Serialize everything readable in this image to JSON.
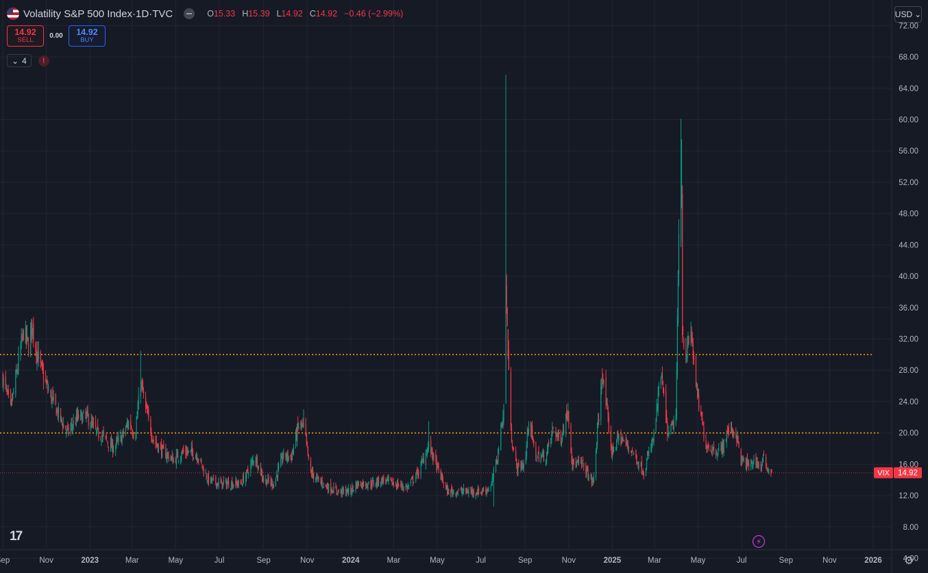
{
  "header": {
    "title": "Volatility S&P 500 Index",
    "interval": "1D",
    "exchange": "TVC",
    "sep": " · ",
    "open_label": "O",
    "open": "15.33",
    "high_label": "H",
    "high": "15.39",
    "low_label": "L",
    "low": "14.92",
    "close_label": "C",
    "close": "14.92",
    "change": "−0.46 (−2.99%)"
  },
  "trade": {
    "sell_price": "14.92",
    "sell_label": "SELL",
    "spread": "0.00",
    "buy_price": "14.92",
    "buy_label": "BUY"
  },
  "indicators": {
    "count": "4",
    "chevron_icon": "chevron-down-icon",
    "warning_icon": "!"
  },
  "currency": {
    "label": "USD",
    "icon": "chevron-down-icon"
  },
  "price_label": {
    "symbol": "VIX",
    "value": "14.92"
  },
  "logo_text": "17",
  "colors": {
    "background": "#161a25",
    "grid": "#232632",
    "up": "#089981",
    "down": "#f23645",
    "level_line": "#ff9800",
    "last_price": "#f23645"
  },
  "chart_data": {
    "type": "candlestick",
    "symbol": "VIX",
    "ylim": [
      4,
      74
    ],
    "yticks": [
      "4.00",
      "8.00",
      "12.00",
      "16.00",
      "20.00",
      "24.00",
      "28.00",
      "32.00",
      "36.00",
      "40.00",
      "44.00",
      "48.00",
      "52.00",
      "56.00",
      "60.00",
      "64.00",
      "68.00",
      "72.00"
    ],
    "xticks": [
      {
        "label": "Sep",
        "date": "2022-09-01"
      },
      {
        "label": "Nov",
        "date": "2022-11-01"
      },
      {
        "label": "2023",
        "date": "2023-01-01"
      },
      {
        "label": "Mar",
        "date": "2023-03-01"
      },
      {
        "label": "May",
        "date": "2023-05-01"
      },
      {
        "label": "Jul",
        "date": "2023-07-01"
      },
      {
        "label": "Sep",
        "date": "2023-09-01"
      },
      {
        "label": "Nov",
        "date": "2023-11-01"
      },
      {
        "label": "2024",
        "date": "2024-01-01"
      },
      {
        "label": "Mar",
        "date": "2024-03-01"
      },
      {
        "label": "May",
        "date": "2024-05-01"
      },
      {
        "label": "Jul",
        "date": "2024-07-01"
      },
      {
        "label": "Sep",
        "date": "2024-09-01"
      },
      {
        "label": "Nov",
        "date": "2024-11-01"
      },
      {
        "label": "2025",
        "date": "2025-01-01"
      },
      {
        "label": "Mar",
        "date": "2025-03-01"
      },
      {
        "label": "May",
        "date": "2025-05-01"
      },
      {
        "label": "Jul",
        "date": "2025-07-01"
      },
      {
        "label": "Sep",
        "date": "2025-09-01"
      },
      {
        "label": "Nov",
        "date": "2025-11-01"
      },
      {
        "label": "2026",
        "date": "2026-01-01"
      }
    ],
    "horizontal_levels": [
      30,
      20
    ],
    "last_price": 14.92,
    "close_path": [
      [
        "2022-09-01",
        27
      ],
      [
        "2022-09-12",
        23
      ],
      [
        "2022-09-23",
        29
      ],
      [
        "2022-09-30",
        33
      ],
      [
        "2022-10-07",
        31
      ],
      [
        "2022-10-12",
        33.5
      ],
      [
        "2022-10-17",
        31
      ],
      [
        "2022-10-25",
        28
      ],
      [
        "2022-11-01",
        26
      ],
      [
        "2022-11-10",
        24
      ],
      [
        "2022-11-22",
        21.5
      ],
      [
        "2022-12-01",
        20
      ],
      [
        "2022-12-15",
        22
      ],
      [
        "2022-12-28",
        22
      ],
      [
        "2023-01-10",
        20
      ],
      [
        "2023-01-20",
        19.5
      ],
      [
        "2023-02-02",
        18
      ],
      [
        "2023-02-15",
        19.5
      ],
      [
        "2023-02-25",
        21.5
      ],
      [
        "2023-03-05",
        19.5
      ],
      [
        "2023-03-13",
        26.5
      ],
      [
        "2023-03-20",
        23
      ],
      [
        "2023-03-31",
        19
      ],
      [
        "2023-04-14",
        17.5
      ],
      [
        "2023-04-28",
        16.5
      ],
      [
        "2023-05-10",
        17.5
      ],
      [
        "2023-05-24",
        17.5
      ],
      [
        "2023-06-01",
        17
      ],
      [
        "2023-06-15",
        14
      ],
      [
        "2023-07-01",
        13.5
      ],
      [
        "2023-07-15",
        13.5
      ],
      [
        "2023-07-31",
        13.5
      ],
      [
        "2023-08-10",
        15
      ],
      [
        "2023-08-20",
        17
      ],
      [
        "2023-09-01",
        14
      ],
      [
        "2023-09-15",
        13.5
      ],
      [
        "2023-09-28",
        17
      ],
      [
        "2023-10-10",
        17
      ],
      [
        "2023-10-20",
        21
      ],
      [
        "2023-10-28",
        20.5
      ],
      [
        "2023-11-05",
        15
      ],
      [
        "2023-11-15",
        14
      ],
      [
        "2023-12-01",
        13
      ],
      [
        "2023-12-15",
        12.5
      ],
      [
        "2023-12-31",
        12.5
      ],
      [
        "2024-01-10",
        13.5
      ],
      [
        "2024-01-30",
        13.5
      ],
      [
        "2024-02-15",
        14
      ],
      [
        "2024-03-01",
        13.5
      ],
      [
        "2024-03-20",
        13
      ],
      [
        "2024-04-05",
        15
      ],
      [
        "2024-04-19",
        18.5
      ],
      [
        "2024-05-01",
        15.5
      ],
      [
        "2024-05-15",
        12.5
      ],
      [
        "2024-06-01",
        12.5
      ],
      [
        "2024-06-15",
        12.5
      ],
      [
        "2024-07-01",
        12.5
      ],
      [
        "2024-07-15",
        13
      ],
      [
        "2024-07-24",
        17
      ],
      [
        "2024-08-02",
        23
      ],
      [
        "2024-08-05",
        38.6
      ],
      [
        "2024-08-12",
        20
      ],
      [
        "2024-08-20",
        15.5
      ],
      [
        "2024-09-01",
        16
      ],
      [
        "2024-09-06",
        22
      ],
      [
        "2024-09-15",
        17
      ],
      [
        "2024-09-30",
        17
      ],
      [
        "2024-10-10",
        20.5
      ],
      [
        "2024-10-20",
        19
      ],
      [
        "2024-10-31",
        23
      ],
      [
        "2024-11-06",
        16
      ],
      [
        "2024-11-20",
        16
      ],
      [
        "2024-12-05",
        13.5
      ],
      [
        "2024-12-18",
        27.5
      ],
      [
        "2024-12-31",
        17.5
      ],
      [
        "2025-01-10",
        19.5
      ],
      [
        "2025-01-27",
        17.9
      ],
      [
        "2025-02-14",
        15
      ],
      [
        "2025-02-28",
        19.5
      ],
      [
        "2025-03-10",
        27.5
      ],
      [
        "2025-03-20",
        19.5
      ],
      [
        "2025-03-31",
        22
      ],
      [
        "2025-04-04",
        45
      ],
      [
        "2025-04-08",
        52
      ],
      [
        "2025-04-09",
        33
      ],
      [
        "2025-04-15",
        30
      ],
      [
        "2025-04-21",
        33
      ],
      [
        "2025-04-30",
        24.5
      ],
      [
        "2025-05-12",
        18.5
      ],
      [
        "2025-05-20",
        18
      ],
      [
        "2025-06-01",
        17.5
      ],
      [
        "2025-06-13",
        20.5
      ],
      [
        "2025-06-23",
        20
      ],
      [
        "2025-06-30",
        16.5
      ],
      [
        "2025-07-10",
        15.8
      ],
      [
        "2025-07-20",
        16.5
      ],
      [
        "2025-07-28",
        15.5
      ],
      [
        "2025-07-31",
        16.7
      ],
      [
        "2025-08-08",
        15.2
      ],
      [
        "2025-08-12",
        14.92
      ]
    ],
    "spikes": [
      {
        "date": "2022-10-12",
        "high": 34.5
      },
      {
        "date": "2023-03-13",
        "high": 30.5
      },
      {
        "date": "2023-10-27",
        "high": 23
      },
      {
        "date": "2024-04-19",
        "high": 21.5
      },
      {
        "date": "2024-07-19",
        "high": 10.6,
        "low_spike": true
      },
      {
        "date": "2024-08-05",
        "high": 65.7
      },
      {
        "date": "2024-12-18",
        "high": 28.3
      },
      {
        "date": "2025-04-07",
        "high": 60.1
      },
      {
        "date": "2025-04-08",
        "high": 57.5
      }
    ]
  }
}
